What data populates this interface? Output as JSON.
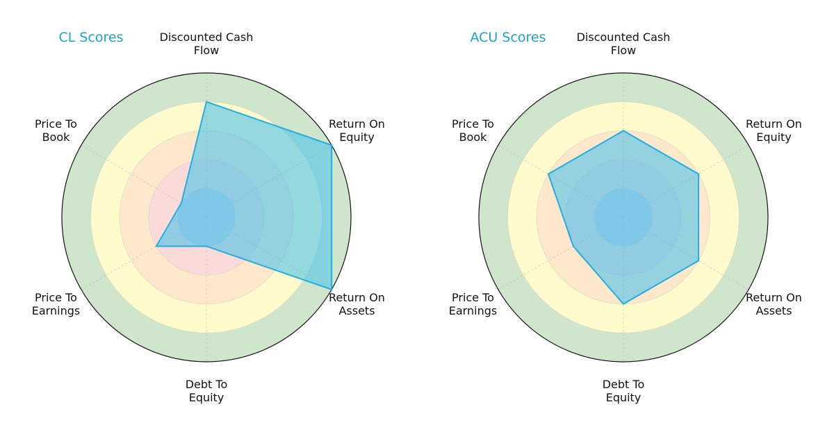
{
  "chart_data": [
    {
      "type": "radar",
      "title": "CL Scores",
      "categories": [
        "Discounted Cash Flow",
        "Return On Equity",
        "Return On Assets",
        "Debt To Equity",
        "Price To Earnings",
        "Price To Book"
      ],
      "values": [
        4,
        5,
        5,
        1,
        2,
        1
      ],
      "rlim": [
        0,
        5
      ],
      "rticks": [
        "1",
        "2",
        "3",
        "4",
        "5"
      ]
    },
    {
      "type": "radar",
      "title": "ACU Scores",
      "categories": [
        "Discounted Cash Flow",
        "Return On Equity",
        "Return On Assets",
        "Debt To Equity",
        "Price To Earnings",
        "Price To Book"
      ],
      "values": [
        3,
        3,
        3,
        3,
        2,
        3
      ],
      "rlim": [
        0,
        5
      ],
      "rticks": [
        "1",
        "2",
        "3",
        "4",
        "5"
      ]
    }
  ],
  "colors": {
    "title": "#1aa3cc",
    "polygon_fill": "#4cc3ea",
    "polygon_stroke": "#22aee0",
    "bands": [
      "#cdd0e4",
      "#fbdada",
      "#fde8cc",
      "#fffbcc",
      "#d0e6cc"
    ]
  }
}
